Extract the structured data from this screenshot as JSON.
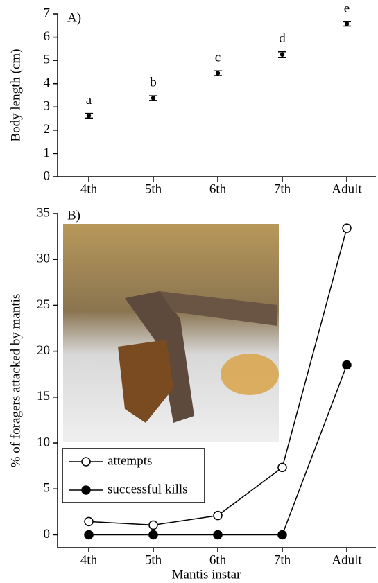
{
  "chart_data": [
    {
      "type": "scatter",
      "title": "A)",
      "ylabel": "Body length (cm)",
      "categories": [
        "4th",
        "5th",
        "6th",
        "7th",
        "Adult"
      ],
      "values": [
        2.62,
        3.38,
        4.45,
        5.25,
        6.57
      ],
      "errors": [
        0.1,
        0.1,
        0.1,
        0.12,
        0.09
      ],
      "letters": [
        "a",
        "b",
        "c",
        "d",
        "e"
      ],
      "color": "#000000",
      "ylim": [
        0,
        7
      ],
      "yticks": [
        0,
        1,
        2,
        3,
        4,
        5,
        6,
        7
      ]
    },
    {
      "type": "line",
      "title": "B)",
      "xlabel": "Mantis instar",
      "ylabel": "% of foragers attacked by mantis",
      "categories": [
        "4th",
        "5th",
        "6th",
        "7th",
        "Adult"
      ],
      "series": [
        {
          "name": "attempts",
          "color": "#000000",
          "marker": "open",
          "values": [
            1.44,
            1.06,
            2.1,
            7.33,
            33.4
          ]
        },
        {
          "name": "successful kills",
          "color": "#000000",
          "marker": "filled",
          "values": [
            0,
            0,
            0,
            0,
            18.5
          ]
        }
      ],
      "ylim": [
        -1.4,
        35
      ],
      "yticks": [
        0,
        5,
        10,
        15,
        20,
        25,
        30,
        35
      ],
      "legend": "lower left"
    }
  ]
}
